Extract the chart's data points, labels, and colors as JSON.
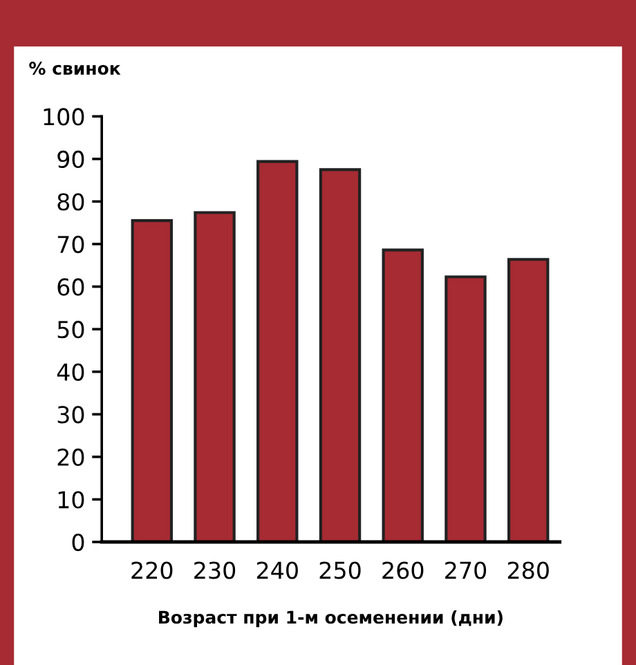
{
  "chart_data": {
    "type": "bar",
    "ylabel": "% свинок",
    "xlabel": "Возраст при 1-м осеменении (дни)",
    "categories": [
      "220",
      "230",
      "240",
      "250",
      "260",
      "270",
      "280"
    ],
    "values": [
      75.5,
      77.4,
      89.4,
      87.5,
      68.6,
      62.3,
      66.4
    ],
    "color": "#a62b33",
    "ylim": [
      0,
      100
    ],
    "yticks": [
      0,
      10,
      20,
      30,
      40,
      50,
      60,
      70,
      80,
      90,
      100
    ],
    "grid": false,
    "legend": false
  }
}
